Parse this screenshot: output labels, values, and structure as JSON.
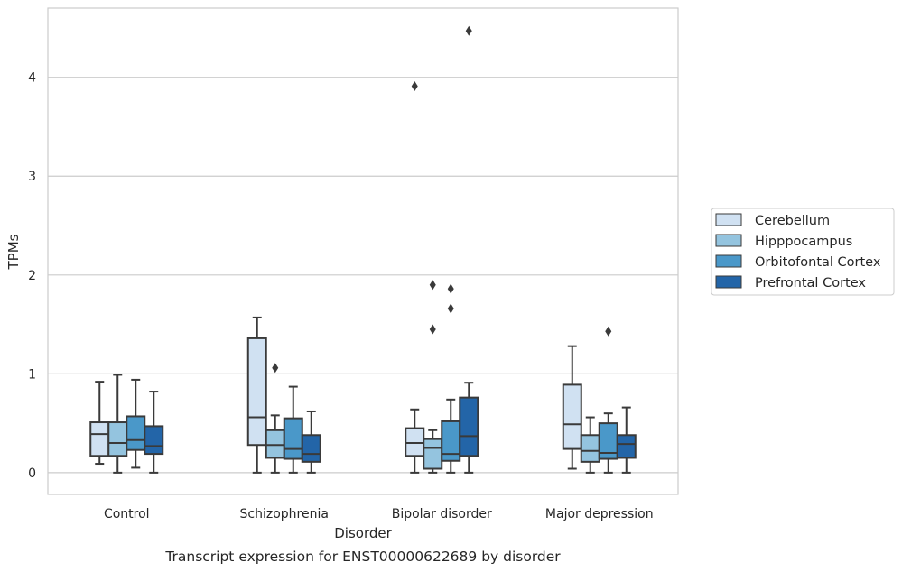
{
  "chart_data": {
    "type": "box",
    "title": "",
    "caption": "Transcript expression for ENST00000622689 by disorder",
    "xlabel": "Disorder",
    "ylabel": "TPMs",
    "ylim": [
      -0.22,
      4.7
    ],
    "yticks": [
      0,
      1,
      2,
      3,
      4
    ],
    "grid": "horizontal",
    "legend_position": "right",
    "categories": [
      "Control",
      "Schizophrenia",
      "Bipolar disorder",
      "Major depression"
    ],
    "series": [
      {
        "name": "Cerebellum",
        "color": "#d0e1f2",
        "boxes": [
          {
            "whisker_low": 0.09,
            "q1": 0.17,
            "median": 0.39,
            "q3": 0.51,
            "whisker_high": 0.92,
            "outliers": []
          },
          {
            "whisker_low": 0.0,
            "q1": 0.28,
            "median": 0.56,
            "q3": 1.36,
            "whisker_high": 1.57,
            "outliers": []
          },
          {
            "whisker_low": 0.0,
            "q1": 0.17,
            "median": 0.3,
            "q3": 0.45,
            "whisker_high": 0.64,
            "outliers": [
              3.91
            ]
          },
          {
            "whisker_low": 0.04,
            "q1": 0.24,
            "median": 0.49,
            "q3": 0.89,
            "whisker_high": 1.28,
            "outliers": []
          }
        ]
      },
      {
        "name": "Hipppocampus",
        "color": "#94c4df",
        "boxes": [
          {
            "whisker_low": 0.0,
            "q1": 0.17,
            "median": 0.3,
            "q3": 0.51,
            "whisker_high": 0.99,
            "outliers": []
          },
          {
            "whisker_low": 0.0,
            "q1": 0.15,
            "median": 0.28,
            "q3": 0.43,
            "whisker_high": 0.58,
            "outliers": [
              1.06
            ]
          },
          {
            "whisker_low": 0.0,
            "q1": 0.04,
            "median": 0.25,
            "q3": 0.34,
            "whisker_high": 0.43,
            "outliers": [
              1.9,
              1.45
            ]
          },
          {
            "whisker_low": 0.0,
            "q1": 0.11,
            "median": 0.22,
            "q3": 0.38,
            "whisker_high": 0.56,
            "outliers": []
          }
        ]
      },
      {
        "name": "Orbitofontal Cortex",
        "color": "#4a98c9",
        "boxes": [
          {
            "whisker_low": 0.05,
            "q1": 0.23,
            "median": 0.33,
            "q3": 0.57,
            "whisker_high": 0.94,
            "outliers": []
          },
          {
            "whisker_low": 0.0,
            "q1": 0.14,
            "median": 0.24,
            "q3": 0.55,
            "whisker_high": 0.87,
            "outliers": []
          },
          {
            "whisker_low": 0.0,
            "q1": 0.12,
            "median": 0.19,
            "q3": 0.52,
            "whisker_high": 0.74,
            "outliers": [
              1.86,
              1.66
            ]
          },
          {
            "whisker_low": 0.0,
            "q1": 0.14,
            "median": 0.2,
            "q3": 0.5,
            "whisker_high": 0.6,
            "outliers": [
              1.43
            ]
          }
        ]
      },
      {
        "name": "Prefrontal Cortex",
        "color": "#2365a8",
        "boxes": [
          {
            "whisker_low": 0.0,
            "q1": 0.19,
            "median": 0.27,
            "q3": 0.47,
            "whisker_high": 0.82,
            "outliers": []
          },
          {
            "whisker_low": 0.0,
            "q1": 0.11,
            "median": 0.19,
            "q3": 0.38,
            "whisker_high": 0.62,
            "outliers": []
          },
          {
            "whisker_low": 0.0,
            "q1": 0.17,
            "median": 0.37,
            "q3": 0.76,
            "whisker_high": 0.91,
            "outliers": [
              4.47
            ]
          },
          {
            "whisker_low": 0.0,
            "q1": 0.15,
            "median": 0.29,
            "q3": 0.38,
            "whisker_high": 0.66,
            "outliers": []
          }
        ]
      }
    ]
  }
}
